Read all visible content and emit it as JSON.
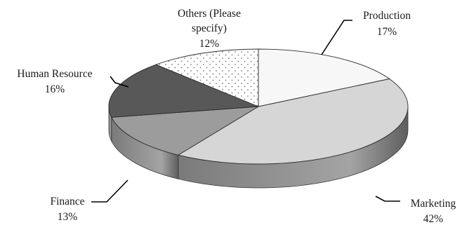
{
  "chart_data": {
    "type": "pie",
    "style": "3d",
    "title": "",
    "legend": "none",
    "slices": [
      {
        "label": "Production",
        "value": 17,
        "value_label": "17%",
        "color": "#f7f7f7",
        "pattern": "solid"
      },
      {
        "label": "Marketing",
        "value": 42,
        "value_label": "42%",
        "color": "#d6d6d6",
        "pattern": "solid"
      },
      {
        "label": "Finance",
        "value": 13,
        "value_label": "13%",
        "color": "#9c9c9c",
        "pattern": "solid"
      },
      {
        "label": "Human Resource",
        "value": 16,
        "value_label": "16%",
        "color": "#585858",
        "pattern": "solid"
      },
      {
        "label": "Others (Please specify)",
        "value": 12,
        "value_label": "12%",
        "color": "#ffffff",
        "pattern": "dotted"
      }
    ]
  }
}
